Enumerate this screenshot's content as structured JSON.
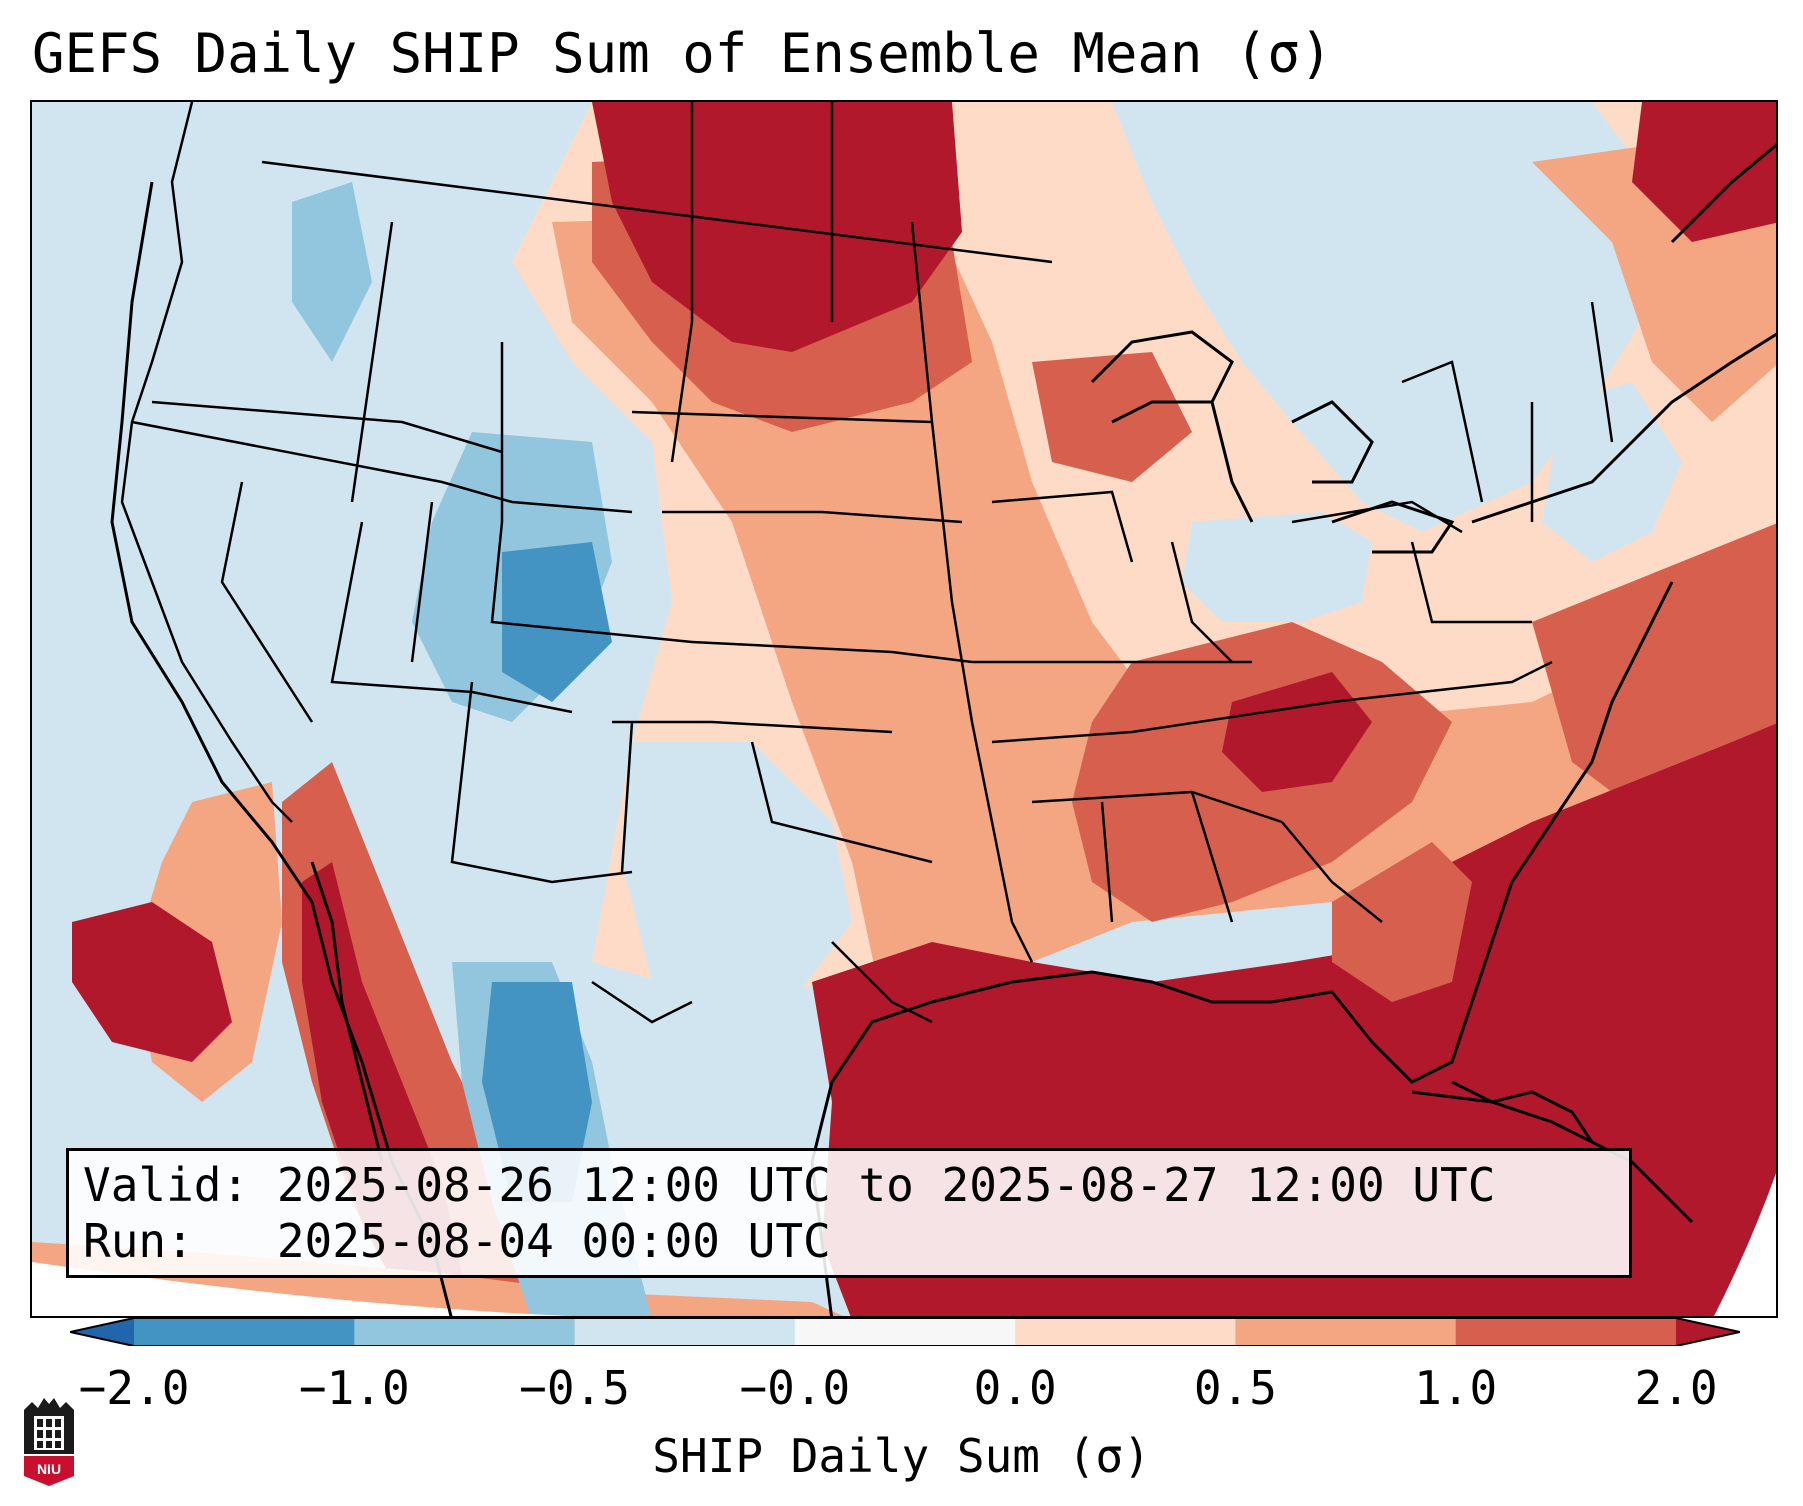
{
  "title": "GEFS Daily SHIP Sum of Ensemble Mean (σ)",
  "info": {
    "valid_line": "Valid: 2025-08-26 12:00 UTC to 2025-08-27 12:00 UTC",
    "run_line": "Run:   2025-08-04 00:00 UTC"
  },
  "colorbar": {
    "label": "SHIP Daily Sum (σ)",
    "tick_labels": [
      "−2.0",
      "−1.0",
      "−0.5",
      "−0.0",
      "0.0",
      "0.5",
      "1.0",
      "2.0"
    ],
    "bins": [
      {
        "from": -2.0,
        "to": -1.0,
        "color": "#4393c3"
      },
      {
        "from": -1.0,
        "to": -0.5,
        "color": "#92c5de"
      },
      {
        "from": -0.5,
        "to": -0.0,
        "color": "#d1e5f0"
      },
      {
        "from": -0.0,
        "to": 0.0,
        "color": "#f7f7f7"
      },
      {
        "from": 0.0,
        "to": 0.5,
        "color": "#fddbc7"
      },
      {
        "from": 0.5,
        "to": 1.0,
        "color": "#f4a582"
      },
      {
        "from": 1.0,
        "to": 2.0,
        "color": "#d6604d"
      }
    ],
    "extend_min_color": "#2166ac",
    "extend_max_color": "#b2182b"
  },
  "logo": {
    "name": "niu-logo",
    "text": "NIU"
  }
}
